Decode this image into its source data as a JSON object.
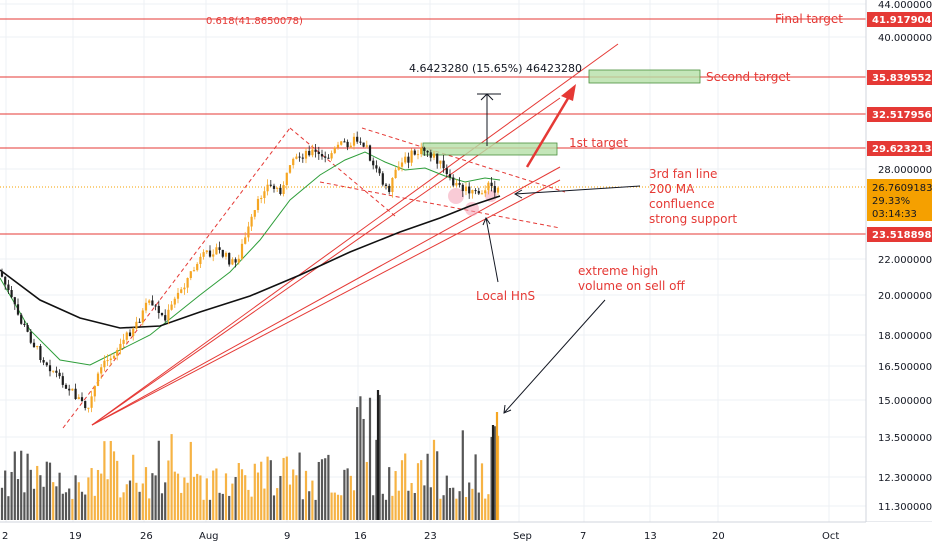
{
  "chart_data": {
    "type": "candlestick",
    "x_ticks": [
      "2",
      "19",
      "26",
      "Aug",
      "9",
      "16",
      "23",
      "Sep",
      "7",
      "13",
      "20",
      "Oct"
    ],
    "y_ticks": [
      "44.0000000",
      "40.0000000",
      "28.0000000",
      "22.0000000",
      "20.0000000",
      "18.0000000",
      "16.5000000",
      "15.0000000",
      "13.5000000",
      "12.3000000",
      "11.3000000"
    ],
    "price_tags": [
      {
        "value": "41.9179046",
        "color": "#e53935"
      },
      {
        "value": "35.8395525",
        "color": "#e53935"
      },
      {
        "value": "32.5179566",
        "color": "#e53935"
      },
      {
        "value": "29.6232134",
        "color": "#e53935"
      },
      {
        "value": "23.5188981",
        "color": "#e53935"
      }
    ],
    "current_price": {
      "value": "26.7609183",
      "change": "29.33%",
      "countdown": "03:14:33",
      "color": "#f5a000"
    },
    "fib_label": "0.618(41.8650078)",
    "measure_label": "4.6423280 (15.65%) 46423280",
    "annotations": {
      "final_target": "Final target",
      "second_target": "Second target",
      "first_target": "1st target",
      "fan_line_1": "3rd fan line",
      "fan_line_2": "200 MA",
      "fan_line_3": "confluence",
      "fan_line_4": "strong support",
      "local_hns": "Local HnS",
      "volume_1": "extreme high",
      "volume_2": "volume on sell off"
    },
    "colors": {
      "up": "#f5a623",
      "down": "#1e1e1e",
      "ma_fast": "#2e9e3a",
      "ma_200": "#111111",
      "levels": "#e53935",
      "target_box": "#b5e0a8",
      "price_line": "#f5a000"
    }
  }
}
